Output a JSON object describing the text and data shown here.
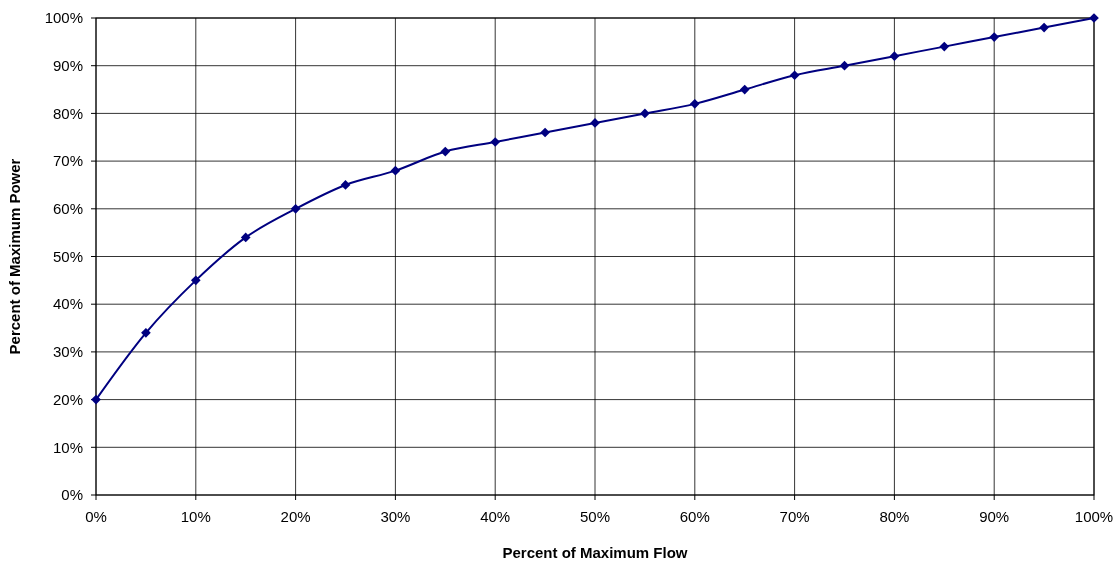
{
  "chart_data": {
    "type": "line",
    "xlabel": "Percent of Maximum Flow",
    "ylabel": "Percent of Maximum Power",
    "x": [
      0,
      5,
      10,
      15,
      20,
      25,
      30,
      35,
      40,
      45,
      50,
      55,
      60,
      65,
      70,
      75,
      80,
      85,
      90,
      95,
      100
    ],
    "series": [
      {
        "color": "#000080",
        "values": [
          20,
          34,
          45,
          54,
          60,
          65,
          68,
          72,
          74,
          76,
          78,
          80,
          82,
          85,
          88,
          90,
          92,
          94,
          96,
          98,
          100
        ]
      }
    ],
    "xlim": [
      0,
      100
    ],
    "ylim": [
      0,
      100
    ],
    "xticks": [
      {
        "value": 0,
        "label": "0%"
      },
      {
        "value": 10,
        "label": "10%"
      },
      {
        "value": 20,
        "label": "20%"
      },
      {
        "value": 30,
        "label": "30%"
      },
      {
        "value": 40,
        "label": "40%"
      },
      {
        "value": 50,
        "label": "50%"
      },
      {
        "value": 60,
        "label": "60%"
      },
      {
        "value": 70,
        "label": "70%"
      },
      {
        "value": 80,
        "label": "80%"
      },
      {
        "value": 90,
        "label": "90%"
      },
      {
        "value": 100,
        "label": "100%"
      }
    ],
    "yticks": [
      {
        "value": 0,
        "label": "0%"
      },
      {
        "value": 10,
        "label": "10%"
      },
      {
        "value": 20,
        "label": "20%"
      },
      {
        "value": 30,
        "label": "30%"
      },
      {
        "value": 40,
        "label": "40%"
      },
      {
        "value": 50,
        "label": "50%"
      },
      {
        "value": 60,
        "label": "60%"
      },
      {
        "value": 70,
        "label": "70%"
      },
      {
        "value": 80,
        "label": "80%"
      },
      {
        "value": 90,
        "label": "90%"
      },
      {
        "value": 100,
        "label": "100%"
      }
    ],
    "grid": true,
    "marker": "diamond"
  }
}
